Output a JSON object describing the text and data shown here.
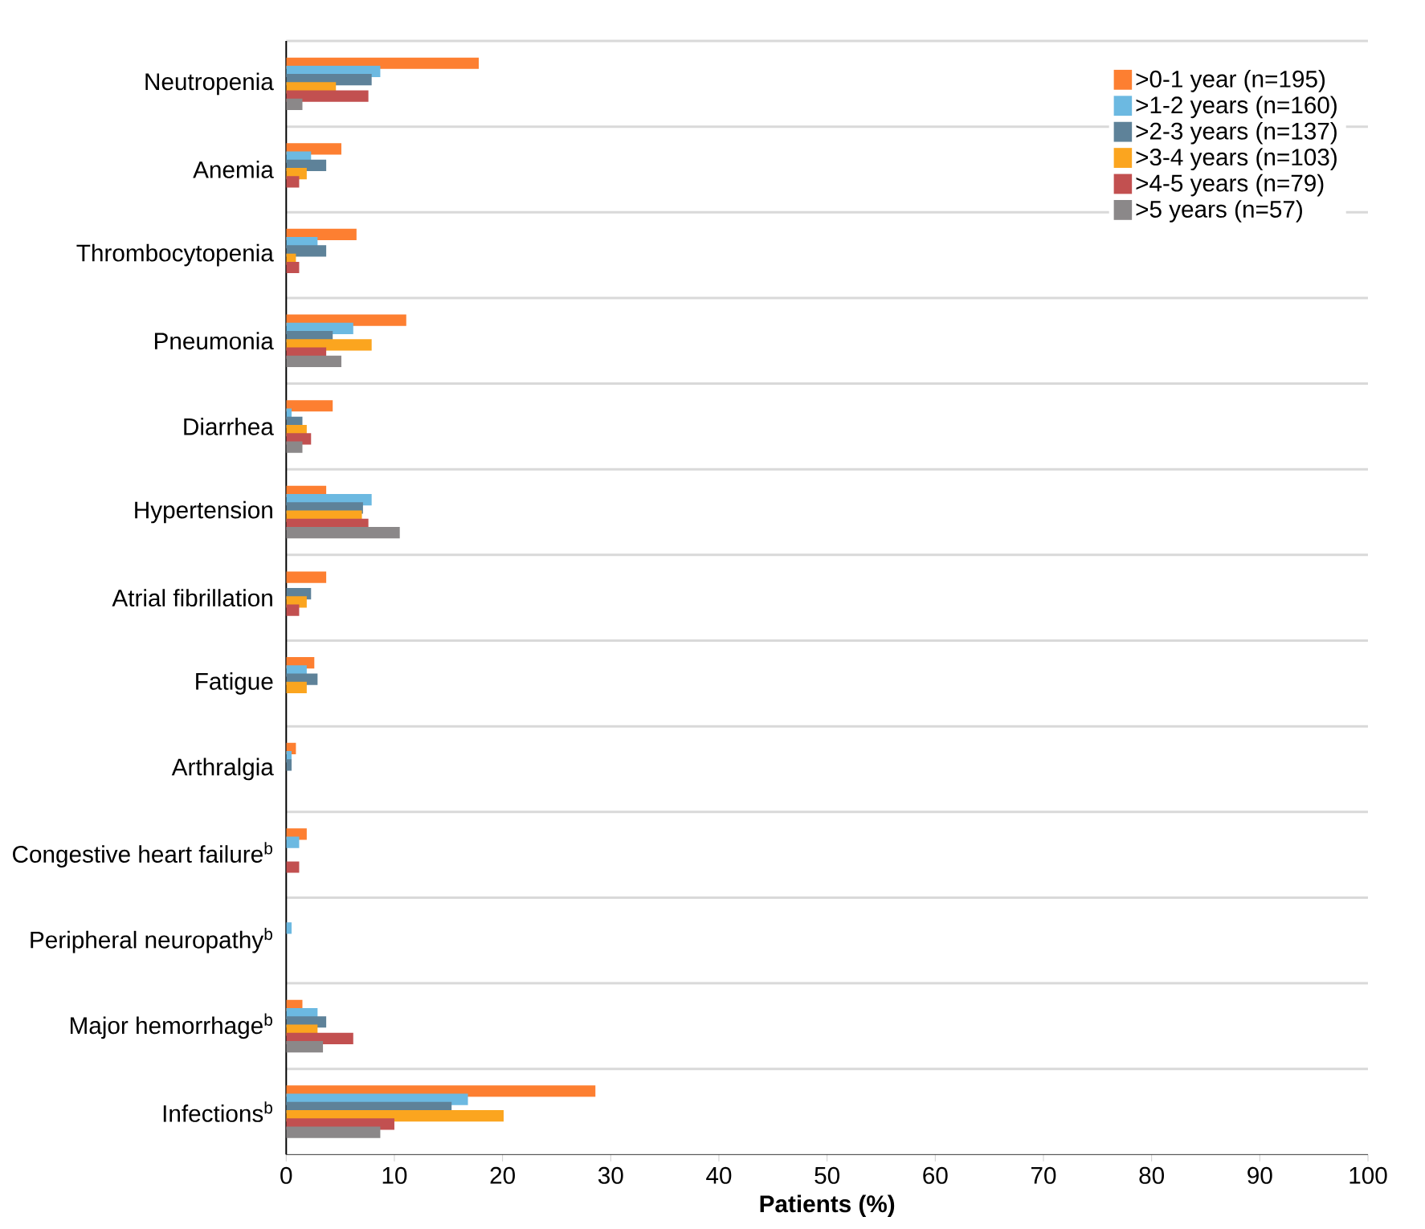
{
  "chart_data": {
    "type": "bar",
    "orientation": "horizontal",
    "xlabel": "Patients (%)",
    "categories": [
      "Neutropenia",
      "Anemia",
      "Thrombocytopenia",
      "Pneumonia",
      "Diarrhea",
      "Hypertension",
      "Atrial fibrillation",
      "Fatigue",
      "Arthralgia",
      "Congestive heart failure$^{b}$",
      "Peripheral neuropathy$^{b}$",
      "Major hemorrhage$^{b}$",
      "Infections$^{b}$"
    ],
    "series": [
      {
        "name": ">0-1 year (n=195)",
        "color": "#fd7f31",
        "values": [
          17.8,
          5.1,
          6.5,
          11.1,
          4.3,
          3.7,
          3.7,
          2.6,
          0.9,
          1.9,
          0,
          1.5,
          28.6
        ]
      },
      {
        "name": ">1-2 years (n=160)",
        "color": "#6cb9e1",
        "values": [
          8.7,
          2.3,
          2.9,
          6.2,
          0.5,
          7.9,
          0,
          1.9,
          0.5,
          1.2,
          0.5,
          2.9,
          16.8
        ]
      },
      {
        "name": ">2-3 years (n=137)",
        "color": "#5e8299",
        "values": [
          7.9,
          3.7,
          3.7,
          4.3,
          1.5,
          7.1,
          2.3,
          2.9,
          0.5,
          0,
          0,
          3.7,
          15.3
        ]
      },
      {
        "name": ">3-4 years (n=103)",
        "color": "#fba51f",
        "values": [
          4.6,
          1.9,
          0.9,
          7.9,
          1.9,
          7.0,
          1.9,
          1.9,
          0,
          0,
          0,
          2.9,
          20.1
        ]
      },
      {
        "name": ">4-5 years (n=79)",
        "color": "#c25050",
        "values": [
          7.6,
          1.2,
          1.2,
          3.7,
          2.3,
          7.6,
          1.2,
          0,
          0,
          1.2,
          0,
          6.2,
          10.0
        ]
      },
      {
        "name": ">5 years (n=57)",
        "color": "#8b8889",
        "values": [
          1.5,
          0,
          0,
          5.1,
          1.5,
          10.5,
          0,
          0,
          0,
          0,
          0,
          3.4,
          8.7
        ]
      }
    ],
    "xlim": [
      0,
      100
    ],
    "xticks": [
      0,
      10,
      20,
      30,
      40,
      50,
      60,
      70,
      80,
      90,
      100
    ],
    "grid": "y",
    "legend": "top right"
  }
}
